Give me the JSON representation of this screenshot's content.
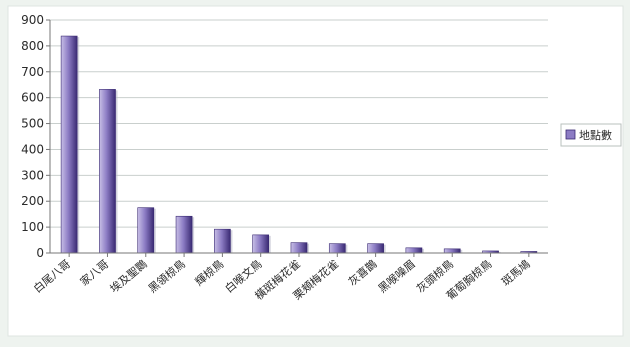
{
  "chart_data": {
    "type": "bar",
    "categories": [
      "白尾八哥",
      "家八哥",
      "埃及聖䴉",
      "黑領椋鳥",
      "輝椋鳥",
      "白喉文鳥",
      "橫斑梅花雀",
      "栗頰梅花雀",
      "灰喜鵲",
      "黑喉噪眉",
      "灰頭椋鳥",
      "葡萄胸椋鳥",
      "斑馬鳩"
    ],
    "series": [
      {
        "name": "地點數",
        "values": [
          838,
          632,
          175,
          142,
          92,
          70,
          40,
          36,
          36,
          20,
          16,
          8,
          6
        ]
      }
    ],
    "ylim": [
      0,
      900
    ],
    "yticks": [
      0,
      100,
      200,
      300,
      400,
      500,
      600,
      700,
      800,
      900
    ],
    "grid": true,
    "legend": "right",
    "colors": {
      "bar_light": "#c8bfe6",
      "bar_mid": "#8c7cc4",
      "bar_dark": "#3a2a73",
      "grid": "#c9cfcd",
      "text": "#2a2a2a"
    }
  }
}
